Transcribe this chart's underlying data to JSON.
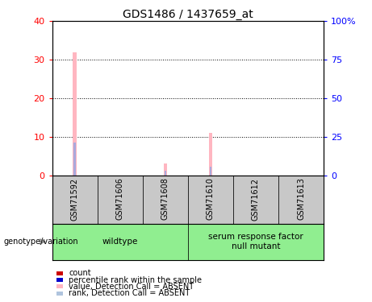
{
  "title": "GDS1486 / 1437659_at",
  "samples": [
    "GSM71592",
    "GSM71606",
    "GSM71608",
    "GSM71610",
    "GSM71612",
    "GSM71613"
  ],
  "pink_bars": [
    32.0,
    0.0,
    3.0,
    11.0,
    0.0,
    0.0
  ],
  "blue_bars": [
    8.5,
    0.0,
    1.2,
    2.2,
    0.0,
    0.0
  ],
  "left_ylim": [
    0,
    40
  ],
  "right_ylim": [
    0,
    100
  ],
  "left_yticks": [
    0,
    10,
    20,
    30,
    40
  ],
  "right_yticks": [
    0,
    25,
    50,
    75,
    100
  ],
  "right_yticklabels": [
    "0",
    "25",
    "50",
    "75",
    "100%"
  ],
  "groups": [
    {
      "label": "wildtype",
      "start": 0,
      "end": 3,
      "color": "#90EE90"
    },
    {
      "label": "serum response factor\nnull mutant",
      "start": 3,
      "end": 6,
      "color": "#90EE90"
    }
  ],
  "genotype_label": "genotype/variation",
  "legend": [
    {
      "color": "#CC0000",
      "label": "count"
    },
    {
      "color": "#0000CC",
      "label": "percentile rank within the sample"
    },
    {
      "color": "#FFB6C1",
      "label": "value, Detection Call = ABSENT"
    },
    {
      "color": "#B0C4DE",
      "label": "rank, Detection Call = ABSENT"
    }
  ],
  "bg_color": "#FFFFFF",
  "sample_box_color": "#C8C8C8",
  "pink_bar_width": 0.08,
  "blue_bar_width": 0.04
}
